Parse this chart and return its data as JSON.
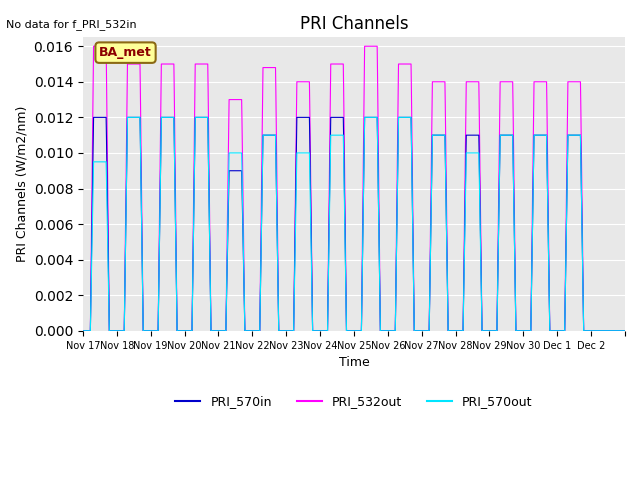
{
  "title": "PRI Channels",
  "no_data_text": "No data for f_PRI_532in",
  "ylabel": "PRI Channels (W/m2/nm)",
  "xlabel": "Time",
  "annotation": "BA_met",
  "ylim": [
    0,
    0.0165
  ],
  "yticks": [
    0.0,
    0.002,
    0.004,
    0.006,
    0.008,
    0.01,
    0.012,
    0.014,
    0.016
  ],
  "bg_color": "#e8e8e8",
  "line_colors": {
    "PRI_570in": "#0000cc",
    "PRI_532out": "#ff00ff",
    "PRI_570out": "#00e5ff"
  },
  "x_tick_positions": [
    0,
    1,
    2,
    3,
    4,
    5,
    6,
    7,
    8,
    9,
    10,
    11,
    12,
    13,
    14,
    15,
    16
  ],
  "x_tick_labels": [
    "Nov 17",
    "Nov 18",
    "Nov 19",
    "Nov 20",
    "Nov 21",
    "Nov 22",
    "Nov 23",
    "Nov 24",
    "Nov 25",
    "Nov 26",
    "Nov 27",
    "Nov 28",
    "Nov 29",
    "Nov 30",
    "Dec 1",
    "Dec 2",
    ""
  ],
  "pulses": [
    {
      "day": 0,
      "peak_532": 0.016,
      "peak_570in": 0.012,
      "peak_570out": 0.0095
    },
    {
      "day": 1,
      "peak_532": 0.015,
      "peak_570in": 0.012,
      "peak_570out": 0.012
    },
    {
      "day": 2,
      "peak_532": 0.015,
      "peak_570in": 0.012,
      "peak_570out": 0.012
    },
    {
      "day": 3,
      "peak_532": 0.015,
      "peak_570in": 0.012,
      "peak_570out": 0.012
    },
    {
      "day": 4,
      "peak_532": 0.013,
      "peak_570in": 0.009,
      "peak_570out": 0.01
    },
    {
      "day": 5,
      "peak_532": 0.0148,
      "peak_570in": 0.011,
      "peak_570out": 0.011
    },
    {
      "day": 6,
      "peak_532": 0.014,
      "peak_570in": 0.012,
      "peak_570out": 0.01
    },
    {
      "day": 7,
      "peak_532": 0.015,
      "peak_570in": 0.012,
      "peak_570out": 0.011
    },
    {
      "day": 8,
      "peak_532": 0.016,
      "peak_570in": 0.012,
      "peak_570out": 0.012
    },
    {
      "day": 9,
      "peak_532": 0.015,
      "peak_570in": 0.012,
      "peak_570out": 0.012
    },
    {
      "day": 10,
      "peak_532": 0.014,
      "peak_570in": 0.011,
      "peak_570out": 0.011
    },
    {
      "day": 11,
      "peak_532": 0.014,
      "peak_570in": 0.011,
      "peak_570out": 0.01
    },
    {
      "day": 12,
      "peak_532": 0.014,
      "peak_570in": 0.011,
      "peak_570out": 0.011
    },
    {
      "day": 13,
      "peak_532": 0.014,
      "peak_570in": 0.011,
      "peak_570out": 0.011
    },
    {
      "day": 14,
      "peak_532": 0.014,
      "peak_570in": 0.011,
      "peak_570out": 0.011
    }
  ]
}
